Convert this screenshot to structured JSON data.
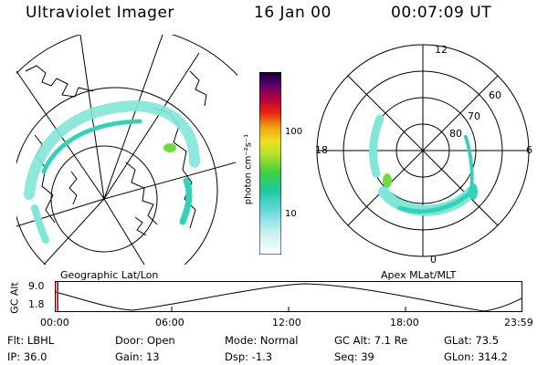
{
  "header": {
    "instrument": "Ultraviolet Imager",
    "date": "16 Jan 00",
    "time": "00:07:09 UT"
  },
  "left_panel": {
    "label": "Geographic Lat/Lon"
  },
  "right_panel": {
    "label": "Apex MLat/MLT",
    "lat_labels": [
      "80",
      "70",
      "60"
    ],
    "mlt_labels": {
      "top": "12",
      "bottom": "0",
      "left": "18",
      "right": "6"
    }
  },
  "colorbar": {
    "unit_label": "photon cm⁻²s⁻¹",
    "ticks": [
      "100",
      "10"
    ]
  },
  "timeline": {
    "ylabel": "GC Alt",
    "ytick_high": "9.0",
    "ytick_low": "1.8",
    "xticks": [
      "00:00",
      "06:00",
      "12:00",
      "18:00",
      "23:59"
    ]
  },
  "info": {
    "filter": "Flt: LBHL",
    "ip": "IP: 36.0",
    "door": "Door: Open",
    "gain": "Gain: 13",
    "mode": "Mode: Normal",
    "dsp": "Dsp:   -1.3",
    "gcalt": "GC Alt: 7.1 Re",
    "seq": "Seq: 39",
    "glat": "GLat:  73.5",
    "glon": "GLon: 314.2"
  },
  "colors": {
    "aurora_weak": "#7fe7d8",
    "aurora_mid": "#2fd3b8",
    "aurora_strong": "#6fdc3c",
    "marker": "#e02020"
  }
}
